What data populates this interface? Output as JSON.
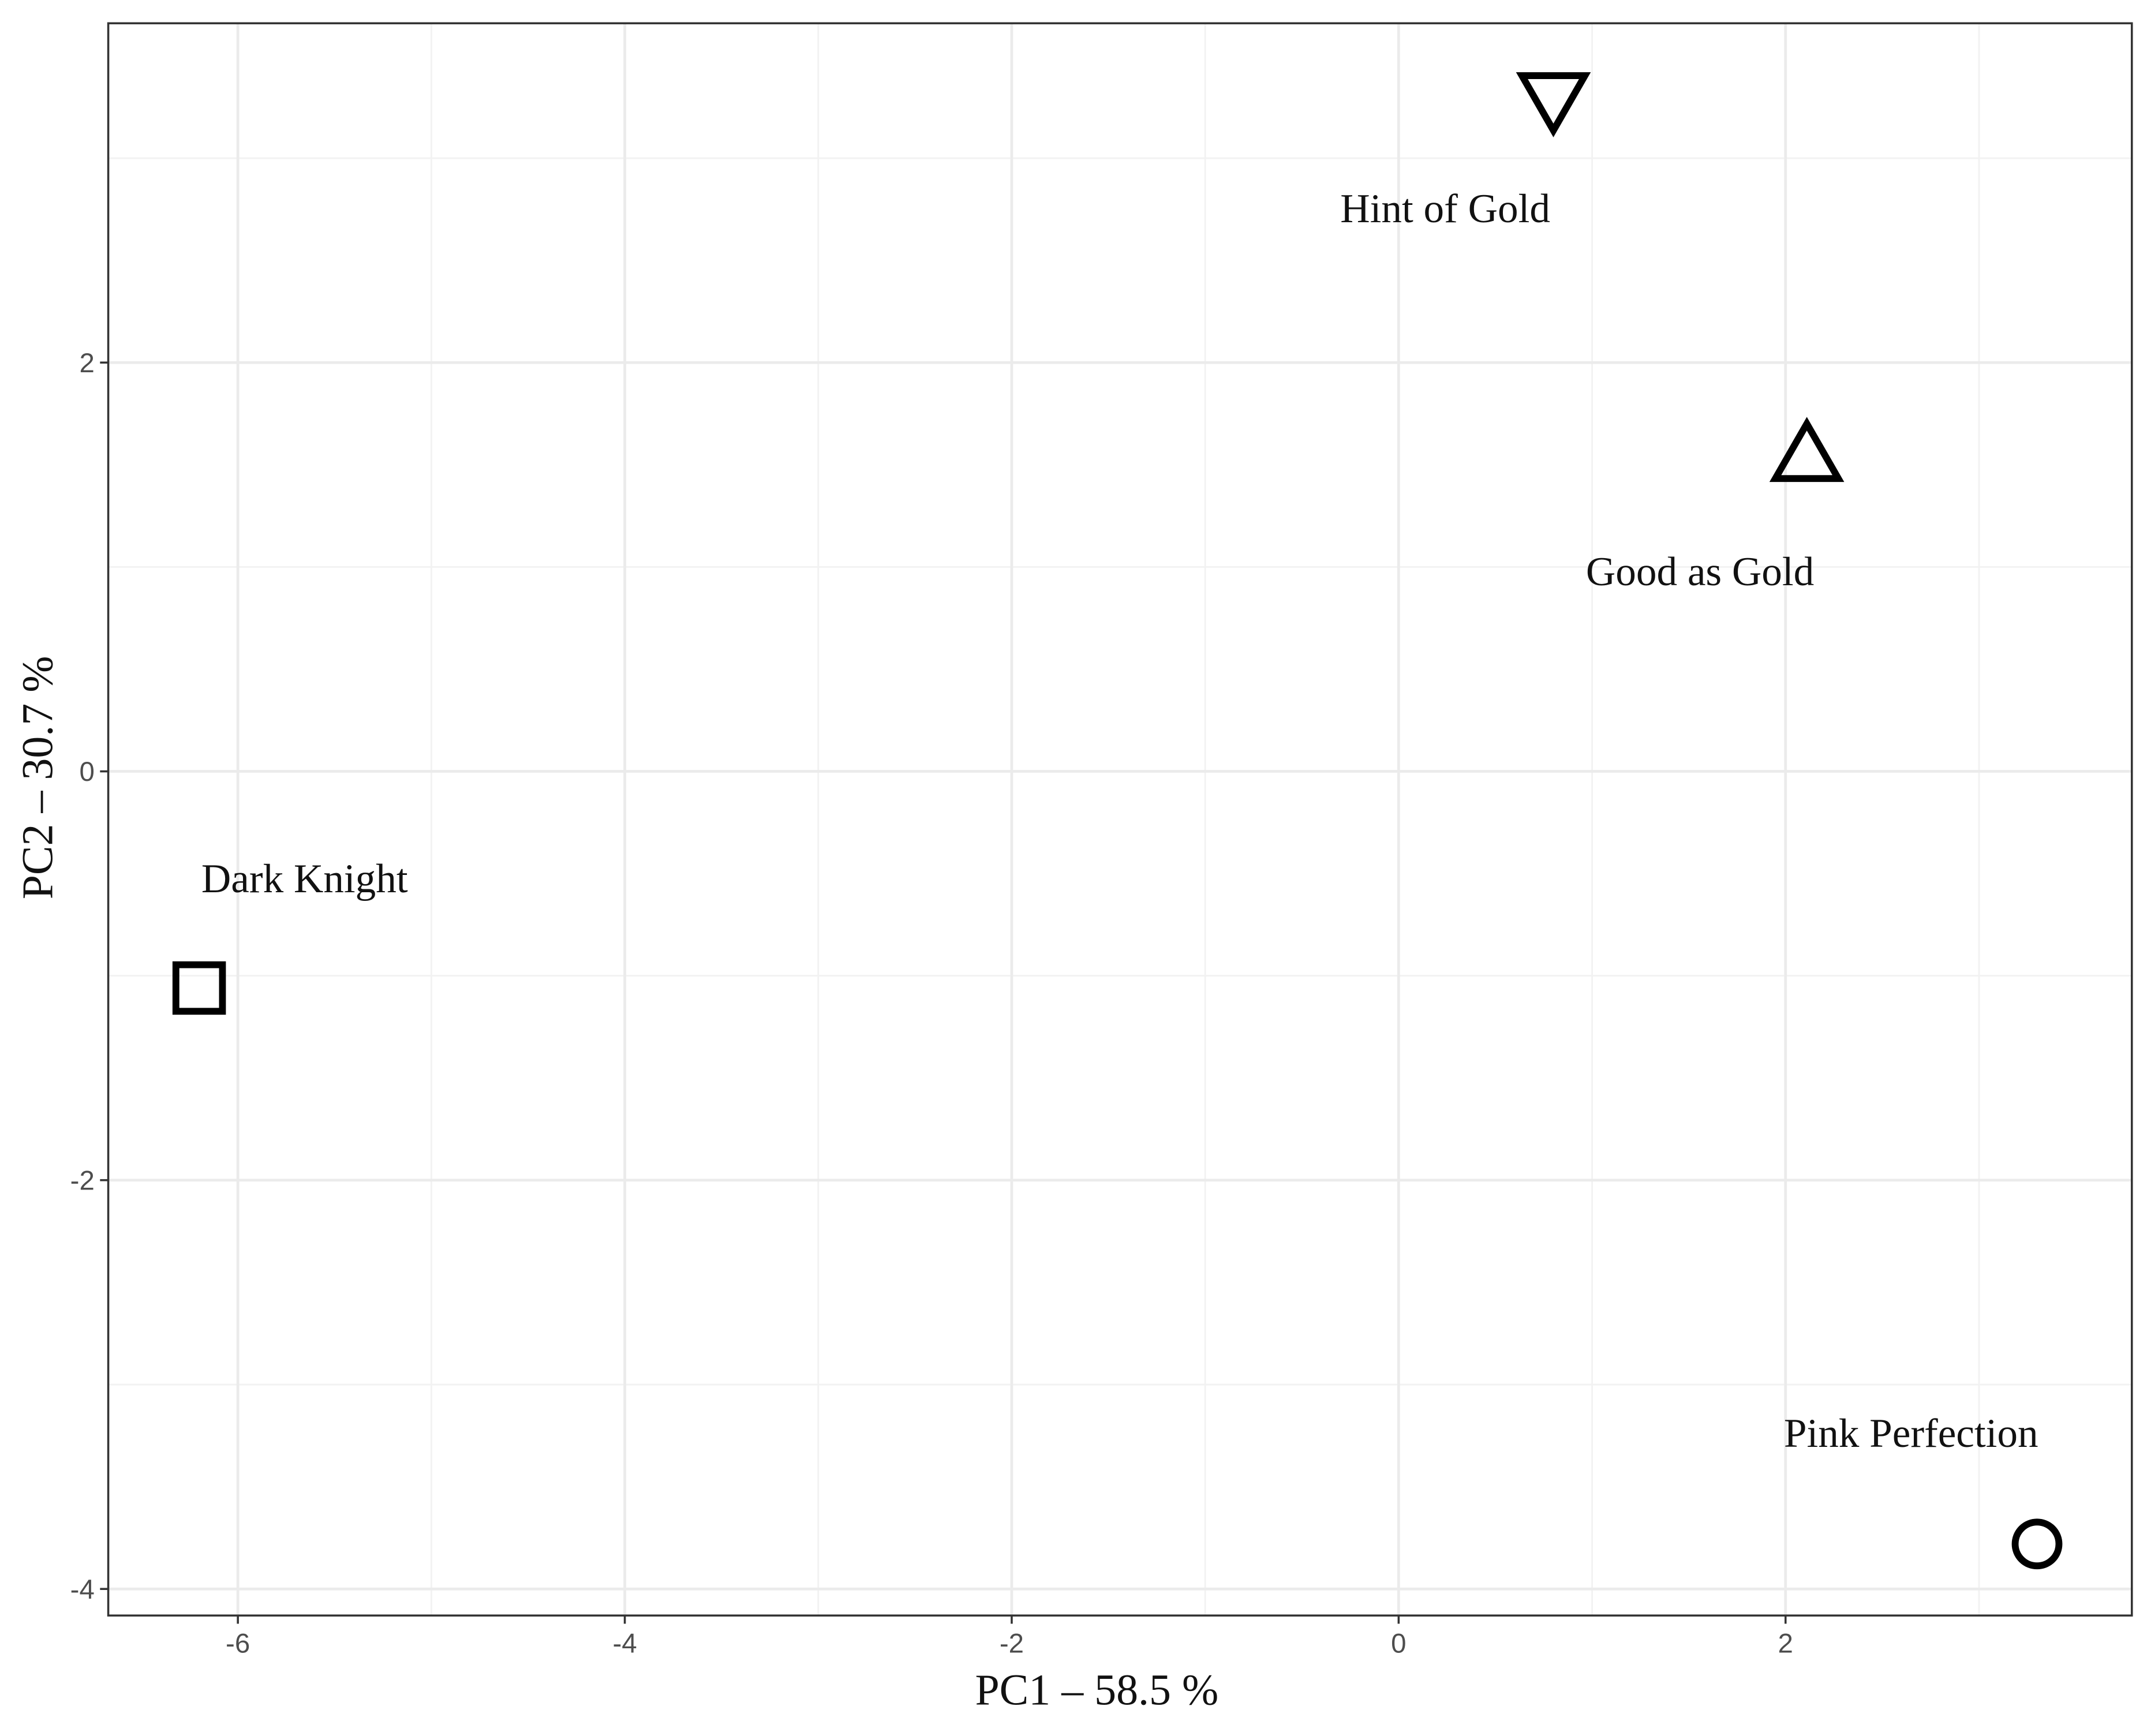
{
  "chart_data": {
    "type": "scatter",
    "x_label": "PC1 – 58.5 %",
    "y_label": "PC2 – 30.7 %",
    "xlim": [
      -6.67,
      3.79
    ],
    "ylim": [
      -4.13,
      3.66
    ],
    "xticks": [
      -6,
      -4,
      -2,
      0,
      2
    ],
    "yticks": [
      -4,
      -2,
      0,
      2
    ],
    "grid": true,
    "color": "#000000",
    "series": [
      {
        "name": "Hint of Gold",
        "shape": "triangle-down",
        "x": 0.8,
        "y": 3.29
      },
      {
        "name": "Good as Gold",
        "shape": "triangle-up",
        "x": 2.11,
        "y": 1.56
      },
      {
        "name": "Dark Knight",
        "shape": "square",
        "x": -6.2,
        "y": -1.06
      },
      {
        "name": "Pink Perfection",
        "shape": "circle",
        "x": 3.3,
        "y": -3.78
      }
    ]
  }
}
